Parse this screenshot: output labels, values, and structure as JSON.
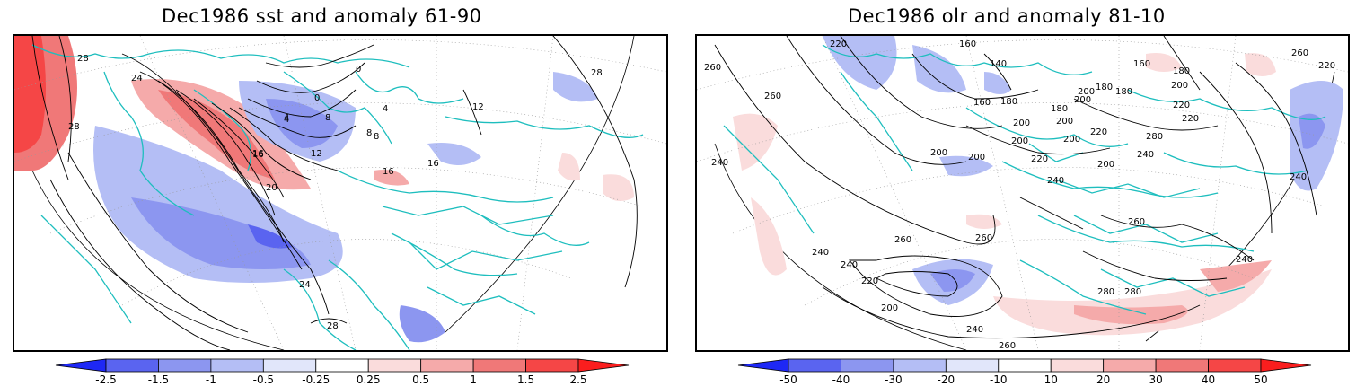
{
  "panels": [
    {
      "title": "Dec1986 sst and anomaly 61-90",
      "contour_labels": [
        "28",
        "24",
        "28",
        "16",
        "12",
        "8",
        "4",
        "0",
        "0",
        "4",
        "8",
        "4",
        "8",
        "12",
        "16",
        "16",
        "16",
        "20",
        "24",
        "28",
        "28",
        "12"
      ],
      "colorbar": {
        "labels": [
          "-2.5",
          "-1.5",
          "-1",
          "-0.5",
          "-0.25",
          "0.25",
          "0.5",
          "1",
          "1.5",
          "2.5"
        ],
        "colors": [
          "#1e28f5",
          "#5a64f0",
          "#8c96f0",
          "#b4bef5",
          "#e1e6fa",
          "#ffffff",
          "#fadcdc",
          "#f5aaaa",
          "#f07878",
          "#f54646",
          "#fa1e1e"
        ]
      }
    },
    {
      "title": "Dec1986 olr and anomaly 81-10",
      "contour_labels": [
        "260",
        "220",
        "160",
        "140",
        "160",
        "180",
        "200",
        "180",
        "180",
        "160",
        "260",
        "200",
        "180",
        "200",
        "220",
        "180",
        "200",
        "220",
        "220",
        "200",
        "240",
        "260",
        "220",
        "200",
        "200",
        "200",
        "200",
        "200",
        "220",
        "240",
        "240",
        "280",
        "260",
        "260",
        "240",
        "240",
        "220",
        "200",
        "240",
        "240",
        "260",
        "280",
        "280",
        "240",
        "260"
      ],
      "colorbar": {
        "labels": [
          "-50",
          "-40",
          "-30",
          "-20",
          "-10",
          "10",
          "20",
          "30",
          "40",
          "50"
        ],
        "colors": [
          "#1e28f5",
          "#5a64f0",
          "#8c96f0",
          "#b4bef5",
          "#e1e6fa",
          "#ffffff",
          "#fadcdc",
          "#f5aaaa",
          "#f07878",
          "#f54646",
          "#fa1e1e"
        ]
      }
    }
  ],
  "colors": {
    "coast": "#1ebebe",
    "contour": "#000000",
    "grid": "#999999"
  }
}
